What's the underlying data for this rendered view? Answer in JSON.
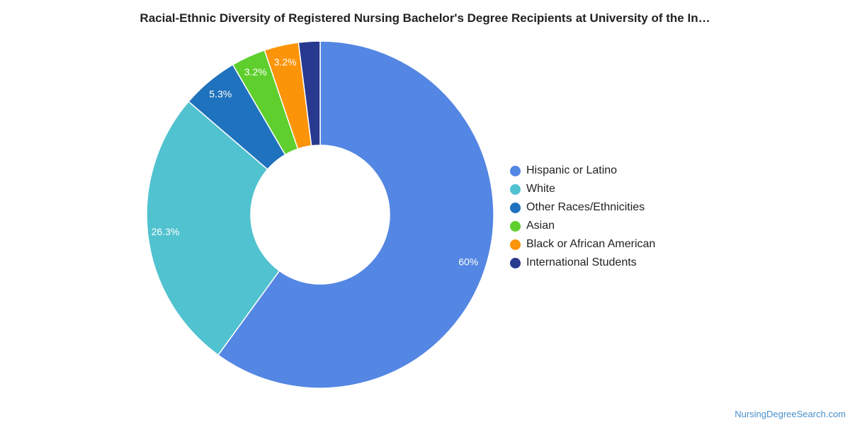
{
  "chart_data": {
    "type": "pie",
    "variant": "donut",
    "title": "Racial-Ethnic Diversity of Registered Nursing Bachelor's Degree Recipients at University of the In…",
    "categories": [
      "Hispanic or Latino",
      "White",
      "Other Races/Ethnicities",
      "Asian",
      "Black or African American",
      "International Students"
    ],
    "values": [
      60.0,
      26.3,
      5.3,
      3.2,
      3.2,
      2.0
    ],
    "data_labels": [
      "60%",
      "26.3%",
      "5.3%",
      "3.2%",
      "3.2%",
      ""
    ],
    "colors": [
      "#5486e3",
      "#51c2cf",
      "#1f72bd",
      "#5ecf2c",
      "#fb9409",
      "#283990"
    ],
    "legend_position": "right"
  },
  "watermark": "NursingDegreeSearch.com"
}
